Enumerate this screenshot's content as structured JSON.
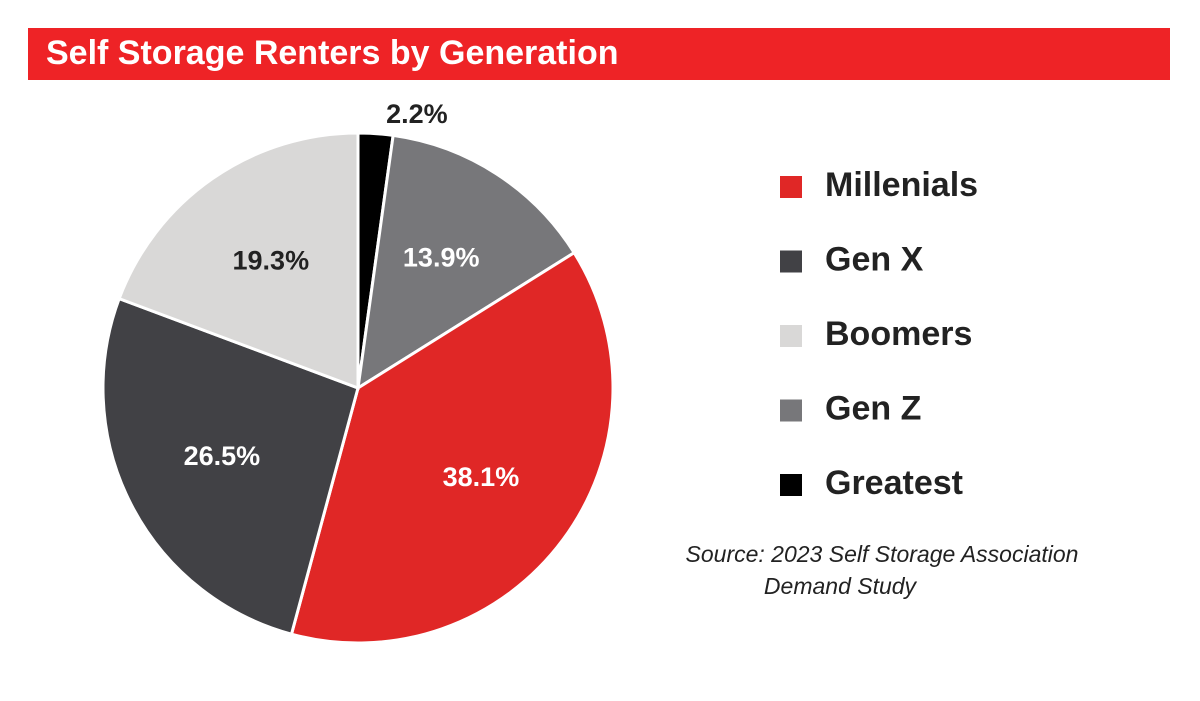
{
  "chart_data": {
    "type": "pie",
    "title": "Self Storage Renters by Generation",
    "categories": [
      "Millenials",
      "Gen X",
      "Boomers",
      "Gen Z",
      "Greatest"
    ],
    "values": [
      38.1,
      26.5,
      19.3,
      13.9,
      2.2
    ],
    "value_labels": [
      "38.1%",
      "26.5%",
      "19.3%",
      "13.9%",
      "2.2%"
    ],
    "colors": [
      "#e02726",
      "#414145",
      "#d9d8d7",
      "#77777a",
      "#000000"
    ],
    "source": [
      "Source: 2023 Self Storage Association",
      "Demand Study"
    ]
  }
}
